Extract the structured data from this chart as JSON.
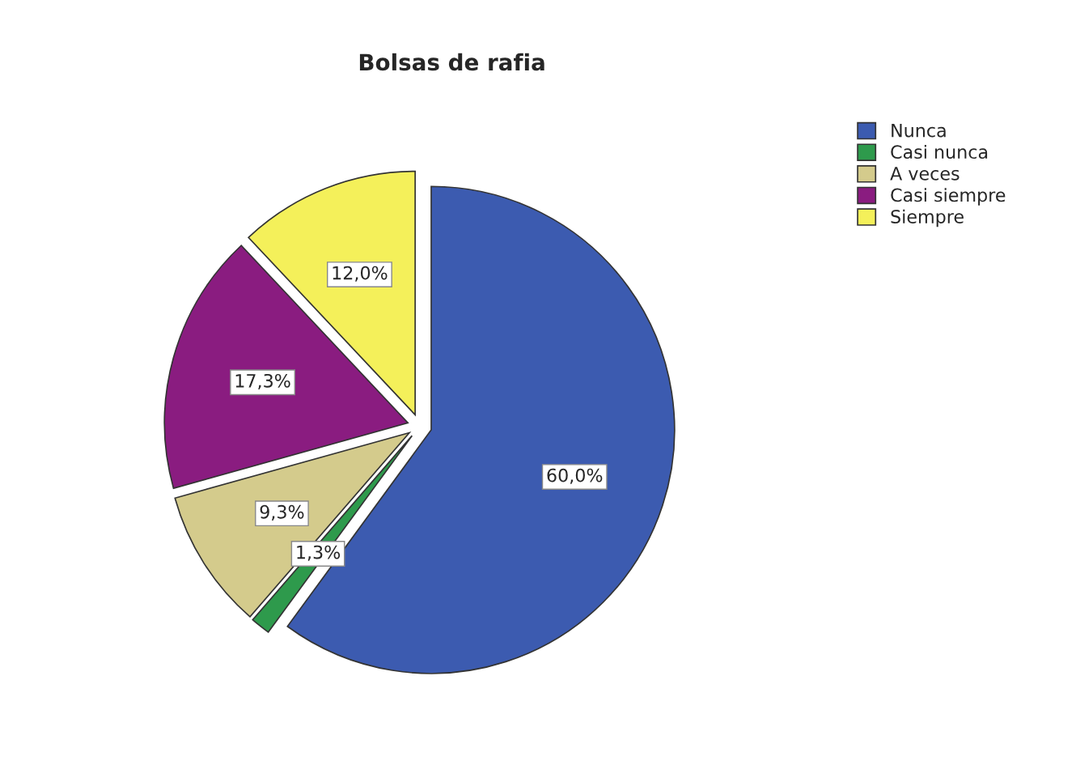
{
  "chart_data": {
    "type": "pie",
    "title": "Bolsas de rafia",
    "categories": [
      "Nunca",
      "Casi nunca",
      "A veces",
      "Casi siempre",
      "Siempre"
    ],
    "values": [
      60.0,
      1.3,
      9.3,
      17.3,
      12.0
    ],
    "colors": [
      "#3c5bb0",
      "#2e9a4c",
      "#d4cb8c",
      "#8a1c80",
      "#f4f05a"
    ],
    "value_labels": [
      "60,0%",
      "1,3%",
      "9,3%",
      "17,3%",
      "12,0%"
    ],
    "legend": "top right"
  }
}
